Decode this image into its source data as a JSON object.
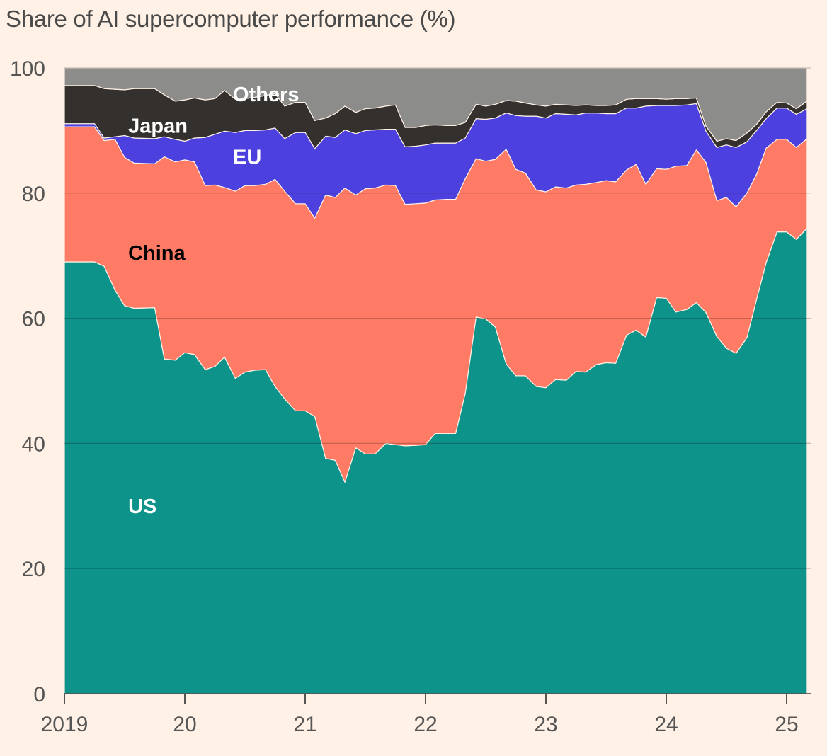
{
  "chart_data": {
    "type": "area",
    "stacked": true,
    "title": "Share of AI supercomputer performance (%)",
    "xlabel": "",
    "ylabel": "",
    "ylim": [
      0,
      100
    ],
    "yticks": [
      0,
      20,
      40,
      60,
      80,
      100
    ],
    "xlim": [
      2019.0,
      2025.2
    ],
    "xticks": [
      {
        "value": 2019,
        "label": "2019"
      },
      {
        "value": 2020,
        "label": "20"
      },
      {
        "value": 2021,
        "label": "21"
      },
      {
        "value": 2022,
        "label": "22"
      },
      {
        "value": 2023,
        "label": "23"
      },
      {
        "value": 2024,
        "label": "24"
      },
      {
        "value": 2025,
        "label": "25"
      }
    ],
    "x": [
      2019.0,
      2019.25,
      2019.33,
      2019.42,
      2019.5,
      2019.58,
      2019.75,
      2019.83,
      2019.92,
      2020.0,
      2020.08,
      2020.17,
      2020.25,
      2020.33,
      2020.42,
      2020.5,
      2020.58,
      2020.67,
      2020.75,
      2020.83,
      2020.92,
      2021.0,
      2021.08,
      2021.17,
      2021.25,
      2021.33,
      2021.42,
      2021.5,
      2021.58,
      2021.67,
      2021.75,
      2021.83,
      2021.92,
      2022.0,
      2022.08,
      2022.17,
      2022.25,
      2022.33,
      2022.42,
      2022.5,
      2022.58,
      2022.67,
      2022.75,
      2022.83,
      2022.92,
      2023.0,
      2023.08,
      2023.17,
      2023.25,
      2023.33,
      2023.42,
      2023.5,
      2023.58,
      2023.67,
      2023.75,
      2023.83,
      2023.92,
      2024.0,
      2024.08,
      2024.17,
      2024.25,
      2024.33,
      2024.42,
      2024.5,
      2024.58,
      2024.67,
      2024.75,
      2024.83,
      2024.92,
      2025.0,
      2025.08,
      2025.17
    ],
    "series": [
      {
        "name": "US",
        "label": "US",
        "color": "#0D9389",
        "label_color": "#ffffff",
        "label_at": [
          2019.53,
          30.0
        ],
        "values": [
          69,
          69,
          68.3,
          64.5,
          62,
          61.6,
          61.7,
          53.5,
          53.3,
          54.5,
          54.2,
          51.8,
          52.3,
          53.8,
          50.4,
          51.4,
          51.7,
          51.8,
          49.1,
          47.1,
          45.2,
          45.2,
          44.3,
          37.6,
          37.3,
          33.8,
          39.3,
          38.3,
          38.3,
          40.0,
          39.8,
          39.6,
          39.7,
          39.8,
          41.6,
          41.6,
          41.6,
          48.0,
          60.2,
          59.9,
          58.6,
          52.7,
          50.8,
          50.8,
          49.1,
          48.9,
          50.2,
          50.1,
          51.5,
          51.4,
          52.6,
          52.9,
          52.8,
          57.3,
          58.1,
          57.0,
          63.3,
          63.2,
          61.0,
          61.4,
          62.5,
          60.9,
          57.1,
          55.2,
          54.4,
          56.9,
          63.0,
          68.9,
          73.8,
          73.8,
          72.6,
          74.4
        ]
      },
      {
        "name": "China",
        "label": "China",
        "color": "#FF7B66",
        "label_color": "#000000",
        "label_at": [
          2019.53,
          70.5
        ],
        "values": [
          21.6,
          21.6,
          20.1,
          24.1,
          23.7,
          23.2,
          23.0,
          32.3,
          31.7,
          30.8,
          30.8,
          29.4,
          29.0,
          27.1,
          29.9,
          29.8,
          29.5,
          29.6,
          33.1,
          33.2,
          33.1,
          33.1,
          31.7,
          42.1,
          42.0,
          47.0,
          40.4,
          42.4,
          42.5,
          41.3,
          41.4,
          38.6,
          38.6,
          38.6,
          37.3,
          37.4,
          37.4,
          34.3,
          25.3,
          25.2,
          26.8,
          34.3,
          33.0,
          32.4,
          31.4,
          31.3,
          30.8,
          30.7,
          29.8,
          30.0,
          29.1,
          29.1,
          29.0,
          26.4,
          26.5,
          24.4,
          20.6,
          20.6,
          23.3,
          23.0,
          24.4,
          24.0,
          21.7,
          24.1,
          23.4,
          23.1,
          20.0,
          18.3,
          14.8,
          14.8,
          14.7,
          14.3
        ]
      },
      {
        "name": "EU",
        "label": "EU",
        "color": "#4C41DE",
        "label_color": "#ffffff",
        "label_at": [
          2020.4,
          85.8
        ],
        "values": [
          0.5,
          0.5,
          0.4,
          0.4,
          3.5,
          4.0,
          4.0,
          3.2,
          3.6,
          3.0,
          3.8,
          7.7,
          8.1,
          9.0,
          9.4,
          8.8,
          8.8,
          8.7,
          8.2,
          8.4,
          11.4,
          11.4,
          11.1,
          9.4,
          9.6,
          9.3,
          9.8,
          9.3,
          9.3,
          8.9,
          9.0,
          9.2,
          9.2,
          9.3,
          9.1,
          9.0,
          9.0,
          6.5,
          6.4,
          6.7,
          6.6,
          5.8,
          8.6,
          9.1,
          11.8,
          11.8,
          11.7,
          11.8,
          11.2,
          11.4,
          11.1,
          10.7,
          10.9,
          9.9,
          9.0,
          12.5,
          10.1,
          10.2,
          9.7,
          9.7,
          7.4,
          5.0,
          8.5,
          8.4,
          9.5,
          8.2,
          7.0,
          4.7,
          5.0,
          5.0,
          5.3,
          4.8
        ]
      },
      {
        "name": "Japan",
        "label": "Japan",
        "color": "#33302E",
        "label_color": "#ffffff",
        "label_at": [
          2019.53,
          90.8
        ],
        "values": [
          6.1,
          6.1,
          7.9,
          7.6,
          7.3,
          7.9,
          8.0,
          6.7,
          6.1,
          6.6,
          6.4,
          6.0,
          5.7,
          6.5,
          5.3,
          5.1,
          5.3,
          5.5,
          5.5,
          5.2,
          4.8,
          4.8,
          4.5,
          2.9,
          3.8,
          3.8,
          3.4,
          3.5,
          3.5,
          3.7,
          3.9,
          3.1,
          3.0,
          3.1,
          2.9,
          2.8,
          2.8,
          2.5,
          2.3,
          2.1,
          2.2,
          2.0,
          2.3,
          2.1,
          1.8,
          1.9,
          1.5,
          1.5,
          1.5,
          1.3,
          1.2,
          1.3,
          1.4,
          1.4,
          1.5,
          1.2,
          1.1,
          1.0,
          1.1,
          1.0,
          0.9,
          0.8,
          1.0,
          1.0,
          1.1,
          1.4,
          1.0,
          1.1,
          0.9,
          0.8,
          0.9,
          1.2
        ]
      },
      {
        "name": "Others",
        "label": "Others",
        "color": "#8C8C8B",
        "label_color": "#ffffff",
        "label_at": [
          2020.4,
          95.8
        ],
        "values": [
          2.8,
          2.8,
          3.3,
          3.4,
          3.5,
          3.3,
          3.3,
          4.3,
          5.3,
          5.1,
          4.8,
          5.1,
          4.9,
          3.6,
          5.0,
          4.9,
          4.7,
          4.4,
          4.1,
          6.1,
          5.5,
          5.5,
          8.4,
          8.0,
          7.3,
          6.1,
          7.1,
          6.5,
          6.4,
          6.1,
          5.9,
          9.5,
          9.5,
          9.2,
          9.1,
          9.2,
          9.2,
          8.7,
          5.8,
          6.1,
          5.8,
          5.2,
          5.3,
          5.6,
          5.9,
          6.1,
          5.8,
          5.9,
          6.0,
          5.9,
          6.0,
          6.0,
          5.9,
          5.0,
          4.9,
          4.9,
          4.9,
          5.0,
          4.9,
          4.9,
          4.8,
          9.3,
          11.7,
          11.3,
          11.6,
          10.4,
          9.0,
          7.0,
          5.5,
          5.6,
          6.5,
          5.3
        ]
      }
    ]
  }
}
